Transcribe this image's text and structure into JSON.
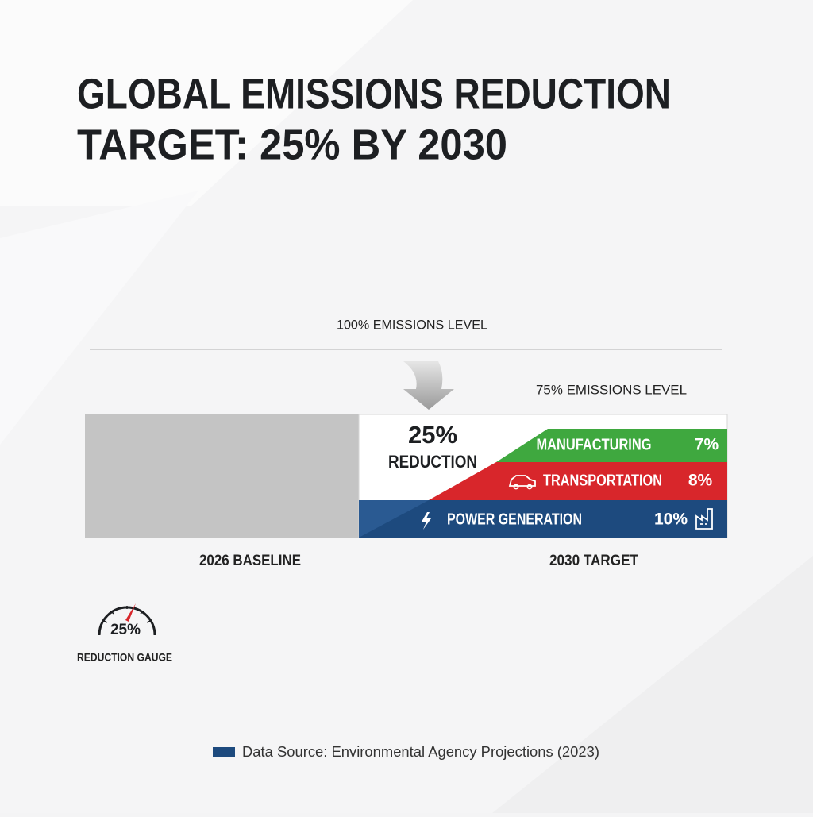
{
  "title": {
    "lines": [
      "GLOBAL EMISSIONS REDUCTION",
      "TARGET: 25% BY 2030"
    ]
  },
  "levels": {
    "top": "100% EMISSIONS LEVEL",
    "target": "75% EMISSIONS LEVEL"
  },
  "reduction": {
    "value": "25%",
    "label": "REDUCTION"
  },
  "sectors": [
    {
      "name": "MANUFACTURING",
      "share": "7%"
    },
    {
      "name": "TRANSPORTATION",
      "share": "8%"
    },
    {
      "name": "POWER GENERATION",
      "share": "10%"
    }
  ],
  "bars": {
    "baseline": "2026 BASELINE",
    "target": "2030 TARGET"
  },
  "gauge": {
    "value": "25%",
    "label": "REDUCTION GAUGE"
  },
  "source": "Data Source: Environmental Agency Projections (2023)"
}
